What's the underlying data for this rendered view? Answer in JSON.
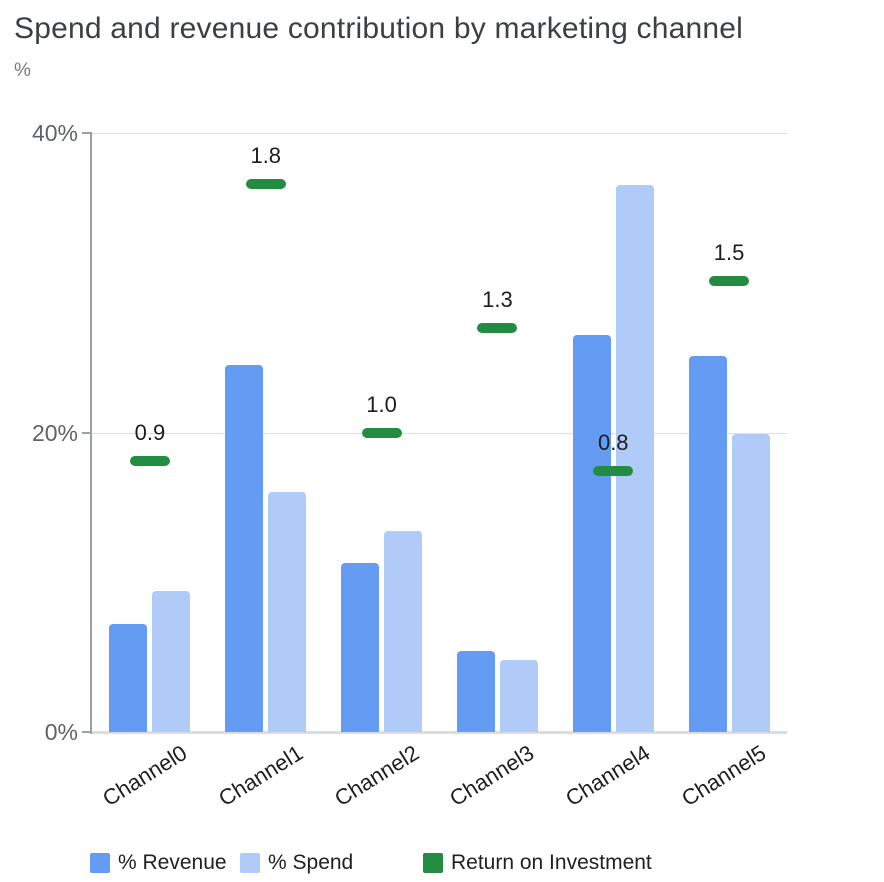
{
  "chart_data": {
    "type": "bar",
    "title": "Spend and revenue contribution by marketing channel",
    "unit_label": "%",
    "categories": [
      "Channel0",
      "Channel1",
      "Channel2",
      "Channel3",
      "Channel4",
      "Channel5"
    ],
    "series": [
      {
        "name": "% Revenue",
        "color": "#649bf3",
        "values": [
          7.2,
          24.5,
          11.3,
          5.4,
          26.5,
          25.1
        ]
      },
      {
        "name": "% Spend",
        "color": "#b1cbf9",
        "values": [
          9.4,
          16.0,
          13.4,
          4.8,
          36.5,
          19.9
        ]
      }
    ],
    "markers": {
      "name": "Return on Investment",
      "color": "#238c41",
      "values": [
        0.9,
        1.8,
        1.0,
        1.3,
        0.8,
        1.5
      ],
      "labels": [
        "0.9",
        "1.8",
        "1.0",
        "1.3",
        "0.8",
        "1.5"
      ],
      "positions_pct": [
        18.1,
        36.6,
        20.0,
        27.0,
        17.4,
        30.1
      ]
    },
    "y_axis": {
      "ylim": [
        0,
        40
      ],
      "ticks": [
        {
          "value": 0,
          "label": "0%"
        },
        {
          "value": 20,
          "label": "20%"
        },
        {
          "value": 40,
          "label": "40%"
        }
      ],
      "grid": true
    },
    "legend_position": "bottom"
  }
}
